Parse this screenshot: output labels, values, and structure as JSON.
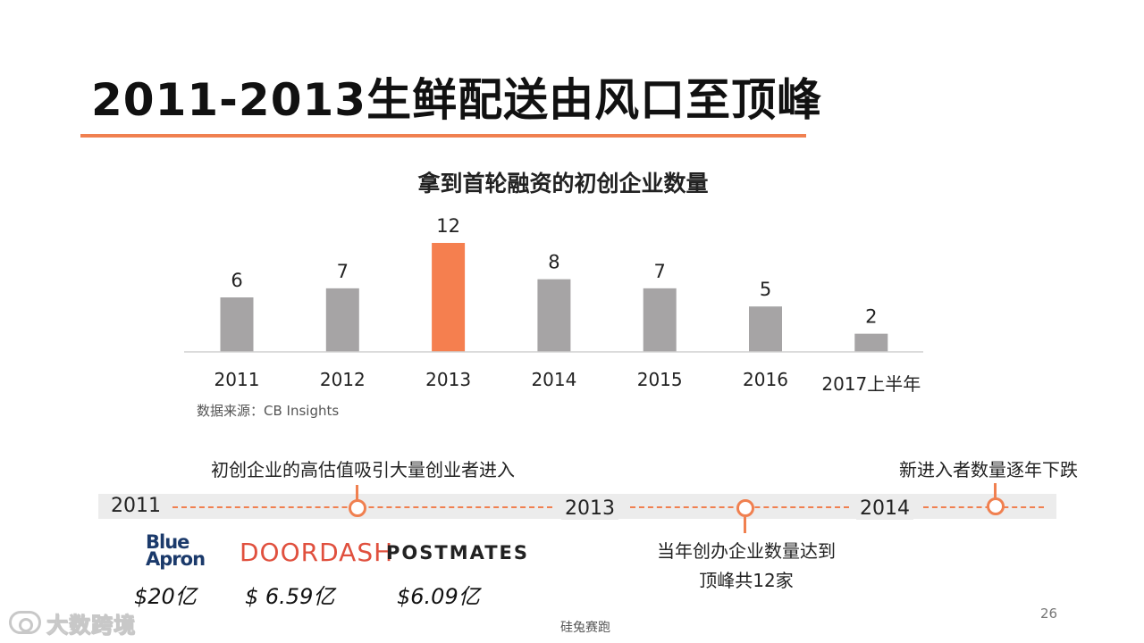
{
  "slide": {
    "title": "2011-2013生鲜配送由风口至顶峰",
    "page_number": "26",
    "footer": "硅兔赛跑",
    "watermark": "大数跨境"
  },
  "chart_data": {
    "type": "bar",
    "title": "拿到首轮融资的初创企业数量",
    "categories": [
      "2011",
      "2012",
      "2013",
      "2014",
      "2015",
      "2016",
      "2017上半年"
    ],
    "values": [
      6,
      7,
      12,
      8,
      7,
      5,
      2
    ],
    "highlight_category": "2013",
    "colors": {
      "default": "#a6a4a5",
      "highlight": "#f57f4f"
    },
    "xlabel": "",
    "ylabel": "",
    "ylim": [
      0,
      12
    ],
    "grid": false,
    "data_labels": true,
    "source": "数据来源：CB Insights"
  },
  "timeline": {
    "years": [
      "2011",
      "2013",
      "2014"
    ],
    "labels": {
      "first_node": "初创企业的高估值吸引大量创业者进入",
      "second_node_line1": "当年创办企业数量达到",
      "second_node_line2": "顶峰共12家",
      "third_node": "新进入者数量逐年下跌"
    },
    "accent_color": "#f08050"
  },
  "companies": [
    {
      "logo_line1": "Blue",
      "logo_line2": "Apron",
      "valuation": "$20亿"
    },
    {
      "logo_line1": "DOORDASH",
      "valuation": "$ 6.59亿"
    },
    {
      "logo_line1": "POSTMATES",
      "valuation": "$6.09亿"
    }
  ]
}
